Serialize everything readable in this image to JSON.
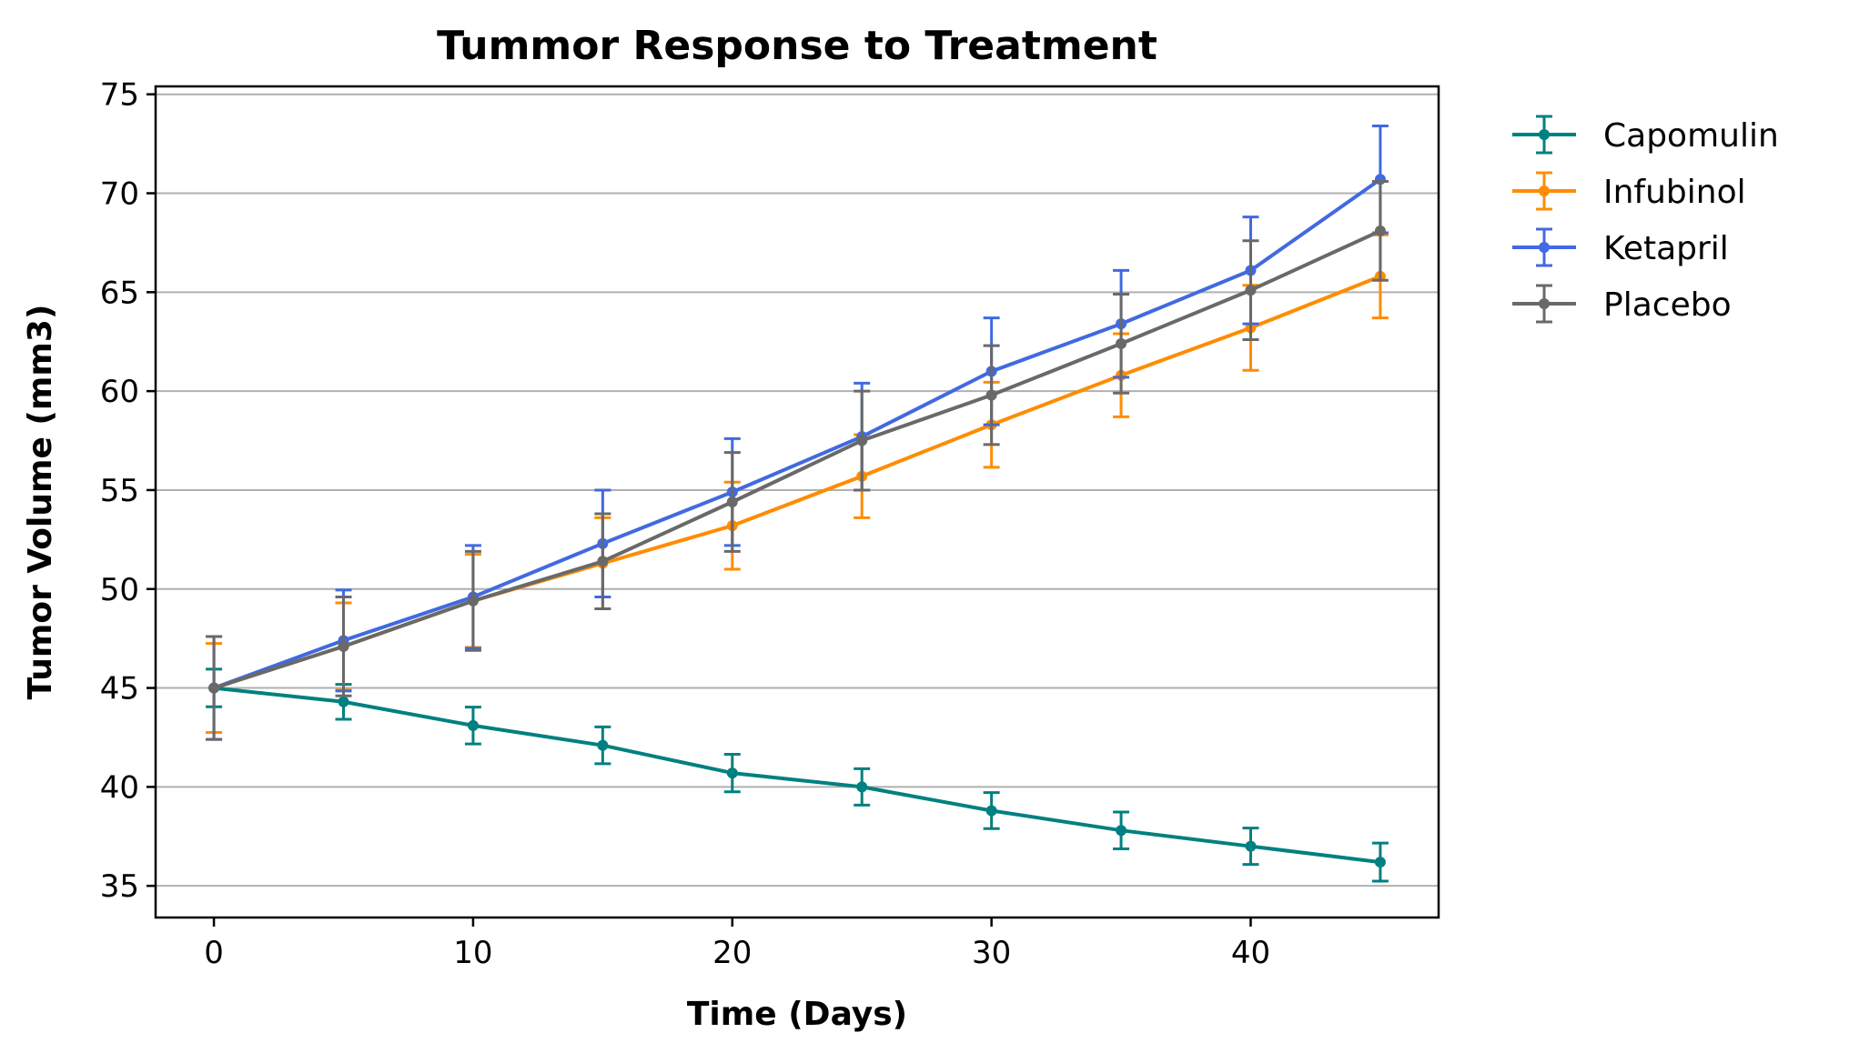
{
  "chart_data": {
    "type": "line",
    "title": "Tummor Response to Treatment",
    "xlabel": "Time (Days)",
    "ylabel": "Tumor Volume (mm3)",
    "xlim": [
      -2.25,
      47.25
    ],
    "ylim": [
      33.4,
      75.4
    ],
    "xticks": [
      0,
      10,
      20,
      30,
      40
    ],
    "yticks": [
      35,
      40,
      45,
      50,
      55,
      60,
      65,
      70,
      75
    ],
    "grid": "horizontal",
    "legend_position": "outside-top-right",
    "x": [
      0,
      5,
      10,
      15,
      20,
      25,
      30,
      35,
      40,
      45
    ],
    "series": [
      {
        "name": "Capomulin",
        "color": "#008080",
        "values": [
          45.0,
          44.3,
          43.1,
          42.1,
          40.7,
          40.0,
          38.8,
          37.8,
          37.0,
          36.2
        ],
        "errors": [
          0.95,
          0.88,
          0.93,
          0.93,
          0.95,
          0.92,
          0.91,
          0.93,
          0.92,
          0.96
        ]
      },
      {
        "name": "Infubinol",
        "color": "#FF8C00",
        "values": [
          45.0,
          47.1,
          49.4,
          51.3,
          53.2,
          55.7,
          58.3,
          60.8,
          63.2,
          65.8
        ],
        "errors": [
          2.25,
          2.2,
          2.35,
          2.3,
          2.2,
          2.1,
          2.15,
          2.1,
          2.15,
          2.1
        ]
      },
      {
        "name": "Ketapril",
        "color": "#4169E1",
        "values": [
          45.0,
          47.4,
          49.6,
          52.3,
          54.9,
          57.7,
          61.0,
          63.4,
          66.1,
          70.7
        ],
        "errors": [
          2.6,
          2.55,
          2.6,
          2.7,
          2.7,
          2.7,
          2.7,
          2.7,
          2.7,
          2.7
        ]
      },
      {
        "name": "Placebo",
        "color": "#696969",
        "values": [
          45.0,
          47.1,
          49.4,
          51.4,
          54.4,
          57.5,
          59.8,
          62.4,
          65.1,
          68.1
        ],
        "errors": [
          2.6,
          2.5,
          2.5,
          2.4,
          2.5,
          2.5,
          2.5,
          2.5,
          2.5,
          2.5
        ]
      }
    ]
  }
}
